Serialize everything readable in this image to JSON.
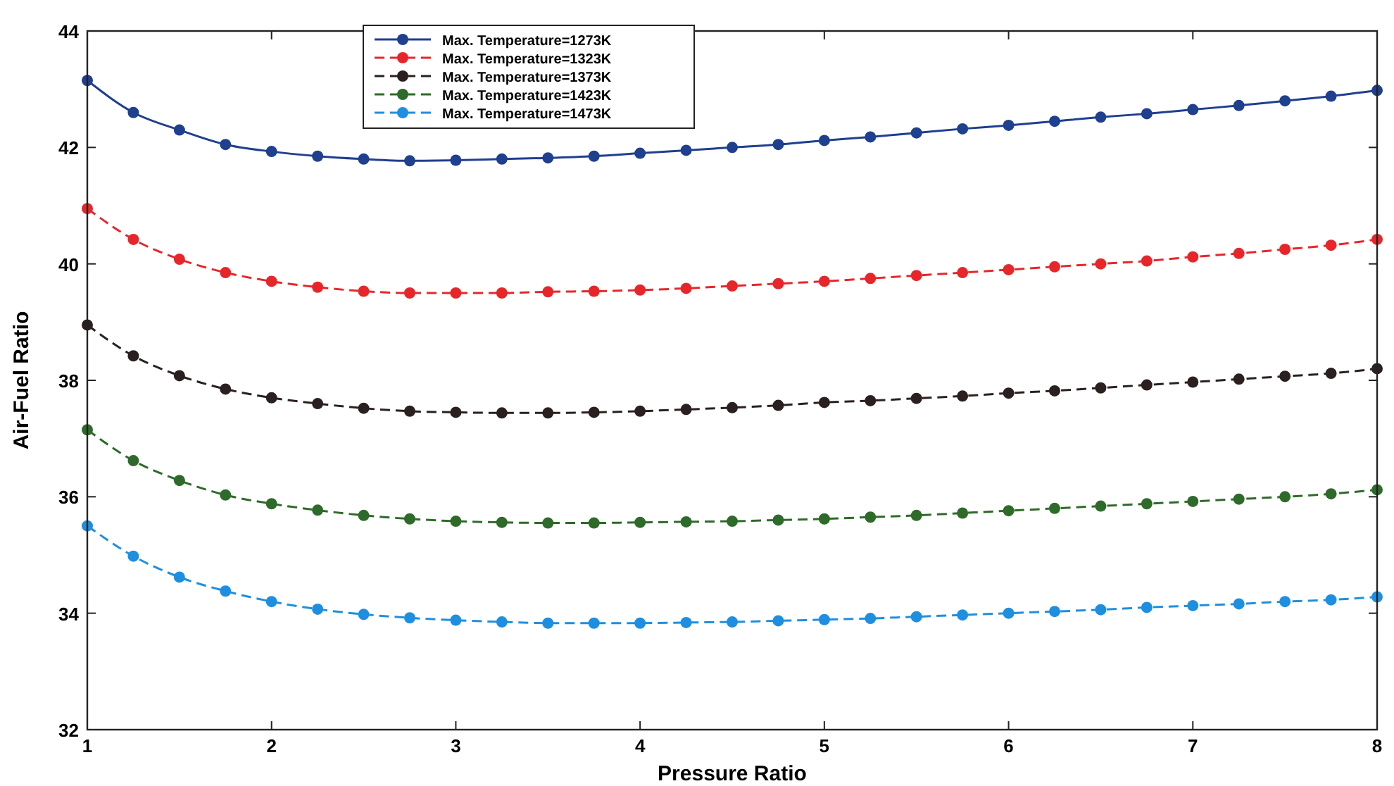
{
  "chart_data": {
    "type": "line",
    "xlabel": "Pressure Ratio",
    "ylabel": "Air-Fuel Ratio",
    "x": [
      1,
      1.25,
      1.5,
      1.75,
      2,
      2.25,
      2.5,
      2.75,
      3,
      3.25,
      3.5,
      3.75,
      4,
      4.25,
      4.5,
      4.75,
      5,
      5.25,
      5.5,
      5.75,
      6,
      6.25,
      6.5,
      6.75,
      7,
      7.25,
      7.5,
      7.75,
      8
    ],
    "xlim": [
      1,
      8
    ],
    "xticks": [
      1,
      2,
      3,
      4,
      5,
      6,
      7,
      8
    ],
    "ylim": [
      32,
      44
    ],
    "yticks": [
      32,
      34,
      36,
      38,
      40,
      42,
      44
    ],
    "grid": false,
    "legend": "top",
    "marker": "circle",
    "series": [
      {
        "name": "Max. Temperature=1273K",
        "color": "#1f3f8f",
        "line_style": "solid",
        "values": [
          43.15,
          42.6,
          42.3,
          42.05,
          41.93,
          41.85,
          41.8,
          41.77,
          41.78,
          41.8,
          41.82,
          41.85,
          41.9,
          41.95,
          42.0,
          42.05,
          42.12,
          42.18,
          42.25,
          42.32,
          42.38,
          42.45,
          42.52,
          42.58,
          42.65,
          42.72,
          42.8,
          42.88,
          42.98
        ]
      },
      {
        "name": "Max. Temperature=1323K",
        "color": "#e8262a",
        "line_style": "dashed",
        "values": [
          40.95,
          40.42,
          40.08,
          39.85,
          39.7,
          39.6,
          39.53,
          39.5,
          39.5,
          39.5,
          39.52,
          39.53,
          39.55,
          39.58,
          39.62,
          39.66,
          39.7,
          39.75,
          39.8,
          39.85,
          39.9,
          39.95,
          40.0,
          40.05,
          40.12,
          40.18,
          40.25,
          40.32,
          40.42
        ]
      },
      {
        "name": "Max. Temperature=1373K",
        "color": "#2a2020",
        "line_style": "dashed",
        "values": [
          38.95,
          38.42,
          38.08,
          37.85,
          37.7,
          37.6,
          37.52,
          37.47,
          37.45,
          37.44,
          37.44,
          37.45,
          37.47,
          37.5,
          37.53,
          37.57,
          37.62,
          37.65,
          37.69,
          37.73,
          37.78,
          37.82,
          37.87,
          37.92,
          37.97,
          38.02,
          38.07,
          38.12,
          38.2
        ]
      },
      {
        "name": "Max. Temperature=1423K",
        "color": "#2e6b2a",
        "line_style": "dashed",
        "values": [
          37.15,
          36.62,
          36.28,
          36.03,
          35.88,
          35.77,
          35.68,
          35.62,
          35.58,
          35.56,
          35.55,
          35.55,
          35.56,
          35.57,
          35.58,
          35.6,
          35.62,
          35.65,
          35.68,
          35.72,
          35.76,
          35.8,
          35.84,
          35.88,
          35.92,
          35.96,
          36.0,
          36.05,
          36.12
        ]
      },
      {
        "name": "Max. Temperature=1473K",
        "color": "#1e8fe0",
        "line_style": "dashed",
        "values": [
          35.5,
          34.98,
          34.62,
          34.38,
          34.2,
          34.07,
          33.98,
          33.92,
          33.88,
          33.85,
          33.83,
          33.83,
          33.83,
          33.84,
          33.85,
          33.87,
          33.89,
          33.91,
          33.94,
          33.97,
          34.0,
          34.03,
          34.06,
          34.1,
          34.13,
          34.16,
          34.2,
          34.23,
          34.28
        ]
      }
    ]
  }
}
